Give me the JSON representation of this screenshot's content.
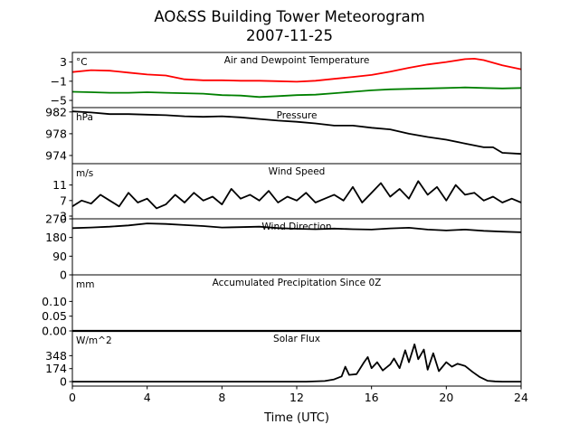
{
  "figure": {
    "title_line1": "AO&SS Building Tower Meteorogram",
    "title_line2": "2007-11-25",
    "xlabel": "Time (UTC)",
    "x_ticks": [
      "0",
      "4",
      "8",
      "12",
      "16",
      "20",
      "24"
    ]
  },
  "chart_data": [
    {
      "type": "line",
      "title": "Air and Dewpoint Temperature",
      "unit": "°C",
      "xlim": [
        0,
        24
      ],
      "ylim": [
        -6.5,
        5
      ],
      "y_ticks": [
        {
          "value": 3,
          "label": "3"
        },
        {
          "value": -1,
          "label": "−1"
        },
        {
          "value": -5,
          "label": "−5"
        }
      ],
      "series": [
        {
          "color": "#ff0000",
          "x": [
            0,
            1,
            2,
            3,
            4,
            5,
            6,
            7,
            8,
            9,
            10,
            11,
            12,
            13,
            14,
            15,
            16,
            17,
            18,
            19,
            20,
            21,
            21.5,
            22,
            23,
            24
          ],
          "values": [
            0.9,
            1.3,
            1.2,
            0.8,
            0.4,
            0.2,
            -0.6,
            -0.8,
            -0.8,
            -0.9,
            -0.9,
            -1.0,
            -1.1,
            -0.9,
            -0.5,
            -0.1,
            0.3,
            1.0,
            1.8,
            2.5,
            3.0,
            3.6,
            3.7,
            3.4,
            2.3,
            1.5
          ]
        },
        {
          "color": "#008000",
          "x": [
            0,
            1,
            2,
            3,
            4,
            5,
            6,
            7,
            8,
            9,
            10,
            11,
            12,
            13,
            14,
            15,
            16,
            17,
            18,
            19,
            20,
            21,
            22,
            23,
            24
          ],
          "values": [
            -3.2,
            -3.3,
            -3.4,
            -3.4,
            -3.3,
            -3.4,
            -3.5,
            -3.6,
            -3.9,
            -4.0,
            -4.3,
            -4.1,
            -3.9,
            -3.8,
            -3.5,
            -3.2,
            -2.9,
            -2.7,
            -2.6,
            -2.5,
            -2.4,
            -2.3,
            -2.4,
            -2.5,
            -2.4
          ]
        }
      ]
    },
    {
      "type": "line",
      "title": "Pressure",
      "unit": "hPa",
      "xlim": [
        0,
        24
      ],
      "ylim": [
        972.5,
        982.8
      ],
      "y_ticks": [
        {
          "value": 982,
          "label": "982"
        },
        {
          "value": 978,
          "label": "978"
        },
        {
          "value": 974,
          "label": "974"
        }
      ],
      "series": [
        {
          "color": "#000000",
          "x": [
            0,
            1,
            2,
            3,
            4,
            5,
            6,
            7,
            8,
            9,
            10,
            11,
            12,
            13,
            14,
            15,
            16,
            17,
            18,
            19,
            20,
            21,
            22,
            22.5,
            23,
            24
          ],
          "values": [
            982.1,
            981.9,
            981.6,
            981.6,
            981.5,
            981.4,
            981.2,
            981.1,
            981.2,
            981.0,
            980.7,
            980.4,
            980.2,
            979.9,
            979.5,
            979.5,
            979.1,
            978.8,
            978.0,
            977.4,
            976.9,
            976.2,
            975.5,
            975.5,
            974.5,
            974.3
          ]
        }
      ]
    },
    {
      "type": "line",
      "title": "Wind Speed",
      "unit": "m/s",
      "xlim": [
        0,
        24
      ],
      "ylim": [
        2.3,
        16.5
      ],
      "y_ticks": [
        {
          "value": 11,
          "label": "11"
        },
        {
          "value": 7,
          "label": "7"
        },
        {
          "value": 3,
          "label": "3"
        }
      ],
      "series": [
        {
          "color": "#000000",
          "x": [
            0,
            0.5,
            1,
            1.5,
            2,
            2.5,
            3,
            3.5,
            4,
            4.5,
            5,
            5.5,
            6,
            6.5,
            7,
            7.5,
            8,
            8.5,
            9,
            9.5,
            10,
            10.5,
            11,
            11.5,
            12,
            12.5,
            13,
            13.5,
            14,
            14.5,
            15,
            15.5,
            16,
            16.5,
            17,
            17.5,
            18,
            18.5,
            19,
            19.5,
            20,
            20.5,
            21,
            21.5,
            22,
            22.5,
            23,
            23.5,
            24
          ],
          "values": [
            5.5,
            7.0,
            6.2,
            8.5,
            7.0,
            5.5,
            9.0,
            6.5,
            7.5,
            5.0,
            6.0,
            8.5,
            6.5,
            9.0,
            7.0,
            8.0,
            6.0,
            10.0,
            7.5,
            8.5,
            7.0,
            9.5,
            6.5,
            8.0,
            7.0,
            9.0,
            6.5,
            7.5,
            8.5,
            7.0,
            10.5,
            6.5,
            9.0,
            11.5,
            8.0,
            10.0,
            7.5,
            12.0,
            8.5,
            10.5,
            7.0,
            11.0,
            8.5,
            9.0,
            7.0,
            8.0,
            6.5,
            7.5,
            6.5
          ]
        }
      ]
    },
    {
      "type": "line",
      "title": "Wind Direction",
      "unit": "",
      "xlim": [
        0,
        24
      ],
      "ylim": [
        0,
        270
      ],
      "y_ticks": [
        {
          "value": 270,
          "label": "270"
        },
        {
          "value": 180,
          "label": "180"
        },
        {
          "value": 90,
          "label": "90"
        },
        {
          "value": 0,
          "label": "0"
        }
      ],
      "series": [
        {
          "color": "#000000",
          "x": [
            0,
            1,
            2,
            3,
            4,
            5,
            6,
            7,
            8,
            9,
            10,
            11,
            12,
            13,
            14,
            15,
            16,
            17,
            18,
            19,
            20,
            21,
            22,
            23,
            24
          ],
          "values": [
            225,
            228,
            232,
            238,
            248,
            245,
            240,
            235,
            228,
            230,
            232,
            225,
            222,
            220,
            223,
            220,
            218,
            224,
            227,
            218,
            214,
            218,
            212,
            208,
            205
          ]
        }
      ]
    },
    {
      "type": "line",
      "title": "Accumulated Precipitation Since 0Z",
      "unit": "mm",
      "xlim": [
        0,
        24
      ],
      "ylim": [
        0,
        0.19
      ],
      "y_ticks": [
        {
          "value": 0.1,
          "label": "0.10"
        },
        {
          "value": 0.05,
          "label": "0.05"
        },
        {
          "value": 0.0,
          "label": "0.00"
        }
      ],
      "series": [
        {
          "color": "#000000",
          "x": [
            0,
            24
          ],
          "values": [
            0,
            0
          ]
        }
      ]
    },
    {
      "type": "line",
      "title": "Solar Flux",
      "unit": "W/m^2",
      "xlim": [
        0,
        24
      ],
      "ylim": [
        -60,
        680
      ],
      "y_ticks": [
        {
          "value": 348,
          "label": "348"
        },
        {
          "value": 174,
          "label": "174"
        },
        {
          "value": 0,
          "label": "0"
        }
      ],
      "series": [
        {
          "color": "#000000",
          "x": [
            0,
            12.5,
            13.5,
            14,
            14.4,
            14.6,
            14.8,
            15.2,
            15.6,
            15.8,
            16.0,
            16.3,
            16.6,
            17.0,
            17.2,
            17.5,
            17.8,
            18.0,
            18.3,
            18.5,
            18.8,
            19.0,
            19.3,
            19.6,
            20.0,
            20.3,
            20.6,
            21.0,
            21.4,
            21.8,
            22.2,
            22.6,
            23,
            24
          ],
          "values": [
            0,
            0,
            8,
            30,
            70,
            200,
            90,
            100,
            260,
            330,
            180,
            260,
            150,
            230,
            310,
            180,
            420,
            260,
            500,
            300,
            430,
            160,
            380,
            140,
            260,
            200,
            240,
            210,
            130,
            60,
            12,
            3,
            0,
            0
          ]
        }
      ]
    }
  ]
}
